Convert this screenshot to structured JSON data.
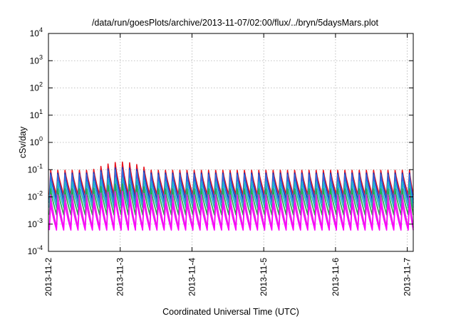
{
  "chart_data": {
    "type": "line",
    "title": "/data/run/goesPlots/archive/2013-11-07/02:00/flux/../bryn/5daysMars.plot",
    "xlabel": "Coordinated Universal Time (UTC)",
    "ylabel": "cSv/day",
    "yscale": "log",
    "ylim": [
      0.0001,
      10000
    ],
    "xlim": [
      "2013-11-02T00:00",
      "2013-11-07T02:00"
    ],
    "grid": true,
    "x_ticks": [
      "2013-11-2",
      "2013-11-3",
      "2013-11-4",
      "2013-11-5",
      "2013-11-6",
      "2013-11-7"
    ],
    "y_ticks": [
      {
        "value": 0.0001,
        "base": "10",
        "exp": "-4"
      },
      {
        "value": 0.001,
        "base": "10",
        "exp": "-3"
      },
      {
        "value": 0.01,
        "base": "10",
        "exp": "-2"
      },
      {
        "value": 0.1,
        "base": "10",
        "exp": "-1"
      },
      {
        "value": 1,
        "base": "10",
        "exp": "0"
      },
      {
        "value": 10,
        "base": "10",
        "exp": "1"
      },
      {
        "value": 100,
        "base": "10",
        "exp": "2"
      },
      {
        "value": 1000,
        "base": "10",
        "exp": "3"
      },
      {
        "value": 10000,
        "base": "10",
        "exp": "4"
      }
    ],
    "pattern": {
      "description_free_sawtooth": true,
      "period_hours": 2.4,
      "phase_hours": 0.3
    },
    "series": [
      {
        "color": "#e8141e",
        "peak": 0.095,
        "trough": 0.012,
        "peak_boost": 0.19
      },
      {
        "color": "#1a2fb8",
        "peak": 0.075,
        "trough": 0.008,
        "peak_boost": 0.12
      },
      {
        "color": "#2d6fe0",
        "peak": 0.065,
        "trough": 0.006,
        "peak_boost": 0.1
      },
      {
        "color": "#18b8c8",
        "peak": 0.035,
        "trough": 0.004,
        "peak_boost": 0.05
      },
      {
        "color": "#2aa84a",
        "peak": 0.02,
        "trough": 0.0022,
        "peak_boost": 0.03
      },
      {
        "color": "#e028e0",
        "peak": 0.012,
        "trough": 0.00075,
        "peak_boost": 0.016
      },
      {
        "color": "#ff00ff",
        "peak": 0.006,
        "trough": 0.0006,
        "peak_boost": 0.009
      }
    ]
  }
}
